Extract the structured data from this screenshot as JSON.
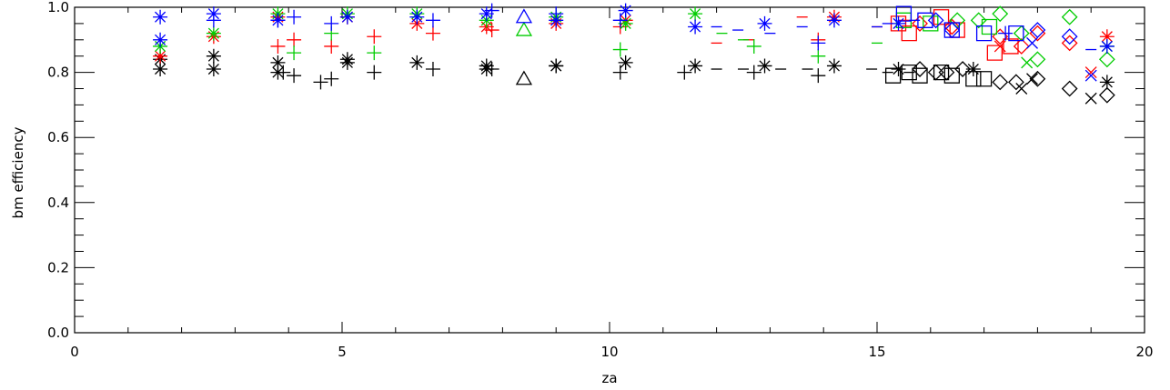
{
  "chart_data": {
    "type": "scatter",
    "title": "",
    "xlabel": "za",
    "ylabel": "bm efficiency",
    "xlim": [
      0,
      20
    ],
    "ylim": [
      0.0,
      1.0
    ],
    "x_ticks": [
      0,
      5,
      10,
      15,
      20
    ],
    "y_ticks": [
      "0.0",
      "0.2",
      "0.4",
      "0.6",
      "0.8",
      "1.0"
    ],
    "x_minor_step": 1,
    "y_minor_step": 0.05,
    "grid": false,
    "colors": {
      "black": "#000000",
      "red": "#ff0000",
      "green": "#00cc00",
      "blue": "#0000ff"
    },
    "series": [
      {
        "color": "black",
        "marker": "asterisk",
        "x": [
          1.6,
          1.6,
          2.6,
          2.6,
          3.8,
          3.8,
          5.1,
          5.1,
          6.4,
          7.7,
          7.7,
          9.0,
          9.0,
          10.3,
          11.6,
          12.9,
          14.2,
          15.4,
          16.8
        ],
        "y": [
          0.81,
          0.84,
          0.81,
          0.85,
          0.8,
          0.83,
          0.83,
          0.84,
          0.83,
          0.82,
          0.81,
          0.82,
          0.82,
          0.83,
          0.82,
          0.82,
          0.82,
          0.81,
          0.81
        ]
      },
      {
        "color": "black",
        "marker": "plus",
        "x": [
          3.9,
          4.1,
          4.6,
          4.8,
          5.6,
          6.7,
          7.8,
          10.2,
          11.4,
          12.7,
          13.9
        ],
        "y": [
          0.8,
          0.79,
          0.77,
          0.78,
          0.8,
          0.81,
          0.81,
          0.8,
          0.8,
          0.8,
          0.79
        ]
      },
      {
        "color": "black",
        "marker": "dash",
        "x": [
          12.0,
          12.5,
          13.2,
          13.7,
          14.9,
          15.2,
          15.6
        ],
        "y": [
          0.81,
          0.81,
          0.81,
          0.81,
          0.81,
          0.8,
          0.8
        ]
      },
      {
        "color": "black",
        "marker": "triangle",
        "x": [
          8.4
        ],
        "y": [
          0.78
        ]
      },
      {
        "color": "black",
        "marker": "square",
        "x": [
          15.3,
          15.6,
          15.8,
          16.2,
          16.4,
          16.8,
          17.0
        ],
        "y": [
          0.79,
          0.8,
          0.79,
          0.8,
          0.79,
          0.78,
          0.78
        ]
      },
      {
        "color": "black",
        "marker": "diamond",
        "x": [
          15.8,
          16.1,
          16.3,
          16.6,
          17.3,
          17.6,
          18.0,
          18.6,
          19.3
        ],
        "y": [
          0.81,
          0.8,
          0.8,
          0.81,
          0.77,
          0.77,
          0.78,
          0.75,
          0.73
        ]
      },
      {
        "color": "black",
        "marker": "cross",
        "x": [
          17.7,
          17.9,
          19.0
        ],
        "y": [
          0.75,
          0.78,
          0.72
        ]
      },
      {
        "color": "black",
        "marker": "asterisk",
        "x": [
          19.3
        ],
        "y": [
          0.77
        ]
      },
      {
        "color": "red",
        "marker": "asterisk",
        "x": [
          1.6,
          2.6,
          3.8,
          5.1,
          6.4,
          7.7,
          9.0,
          10.3,
          14.2,
          19.3
        ],
        "y": [
          0.85,
          0.91,
          0.97,
          0.97,
          0.95,
          0.94,
          0.95,
          0.96,
          0.97,
          0.91
        ]
      },
      {
        "color": "red",
        "marker": "plus",
        "x": [
          3.8,
          4.1,
          4.8,
          5.6,
          6.7,
          7.8,
          10.2,
          13.9
        ],
        "y": [
          0.88,
          0.9,
          0.88,
          0.91,
          0.92,
          0.93,
          0.94,
          0.9
        ]
      },
      {
        "color": "red",
        "marker": "dash",
        "x": [
          12.0,
          12.6,
          13.6,
          15.0,
          15.5
        ],
        "y": [
          0.89,
          0.9,
          0.97,
          0.94,
          0.96
        ]
      },
      {
        "color": "red",
        "marker": "square",
        "x": [
          15.4,
          15.6,
          16.2,
          16.5,
          17.2,
          17.5
        ],
        "y": [
          0.95,
          0.92,
          0.97,
          0.93,
          0.86,
          0.88
        ]
      },
      {
        "color": "red",
        "marker": "diamond",
        "x": [
          15.8,
          16.4,
          17.3,
          17.7,
          18.0,
          18.6
        ],
        "y": [
          0.95,
          0.94,
          0.91,
          0.88,
          0.92,
          0.89
        ]
      },
      {
        "color": "red",
        "marker": "cross",
        "x": [
          17.3,
          19.0
        ],
        "y": [
          0.88,
          0.8
        ]
      },
      {
        "color": "green",
        "marker": "asterisk",
        "x": [
          1.6,
          2.6,
          3.8,
          5.1,
          6.4,
          7.7,
          9.0,
          10.3,
          11.6,
          19.3
        ],
        "y": [
          0.88,
          0.92,
          0.98,
          0.98,
          0.98,
          0.96,
          0.97,
          0.95,
          0.98,
          0.88
        ]
      },
      {
        "color": "green",
        "marker": "plus",
        "x": [
          4.1,
          4.8,
          5.6,
          10.2,
          12.7,
          13.9
        ],
        "y": [
          0.86,
          0.92,
          0.86,
          0.87,
          0.88,
          0.85
        ]
      },
      {
        "color": "green",
        "marker": "dash",
        "x": [
          12.1,
          12.5,
          15.0
        ],
        "y": [
          0.92,
          0.9,
          0.89
        ]
      },
      {
        "color": "green",
        "marker": "triangle",
        "x": [
          8.4
        ],
        "y": [
          0.93
        ]
      },
      {
        "color": "green",
        "marker": "square",
        "x": [
          15.5,
          16.0,
          17.1
        ],
        "y": [
          0.96,
          0.95,
          0.94
        ]
      },
      {
        "color": "green",
        "marker": "diamond",
        "x": [
          16.5,
          16.9,
          17.3,
          17.7,
          18.0,
          18.6,
          19.3
        ],
        "y": [
          0.96,
          0.96,
          0.98,
          0.92,
          0.84,
          0.97,
          0.84
        ]
      },
      {
        "color": "green",
        "marker": "cross",
        "x": [
          17.8
        ],
        "y": [
          0.83
        ]
      },
      {
        "color": "blue",
        "marker": "asterisk",
        "x": [
          1.6,
          1.6,
          2.6,
          3.8,
          5.1,
          6.4,
          7.7,
          9.0,
          10.3,
          11.6,
          12.9,
          14.2,
          15.4,
          19.3
        ],
        "y": [
          0.9,
          0.97,
          0.98,
          0.96,
          0.97,
          0.97,
          0.98,
          0.96,
          0.99,
          0.94,
          0.95,
          0.96,
          0.95,
          0.88
        ]
      },
      {
        "color": "blue",
        "marker": "plus",
        "x": [
          2.6,
          3.8,
          4.1,
          4.8,
          6.7,
          7.8,
          9.0,
          10.2,
          13.9,
          17.4
        ],
        "y": [
          0.96,
          0.96,
          0.97,
          0.95,
          0.96,
          0.99,
          0.98,
          0.96,
          0.89,
          0.92
        ]
      },
      {
        "color": "blue",
        "marker": "dash",
        "x": [
          12.0,
          12.4,
          13.0,
          13.6,
          15.0,
          15.2,
          15.7,
          19.0
        ],
        "y": [
          0.94,
          0.93,
          0.92,
          0.94,
          0.94,
          0.95,
          0.96,
          0.87
        ]
      },
      {
        "color": "blue",
        "marker": "triangle",
        "x": [
          8.4
        ],
        "y": [
          0.97
        ]
      },
      {
        "color": "blue",
        "marker": "square",
        "x": [
          15.5,
          15.9,
          16.4,
          17.0,
          17.6
        ],
        "y": [
          0.98,
          0.96,
          0.93,
          0.92,
          0.92
        ]
      },
      {
        "color": "blue",
        "marker": "diamond",
        "x": [
          16.1,
          16.4,
          18.6,
          18.0
        ],
        "y": [
          0.96,
          0.93,
          0.91,
          0.93
        ]
      },
      {
        "color": "blue",
        "marker": "cross",
        "x": [
          17.9,
          19.0
        ],
        "y": [
          0.89,
          0.79
        ]
      }
    ]
  }
}
